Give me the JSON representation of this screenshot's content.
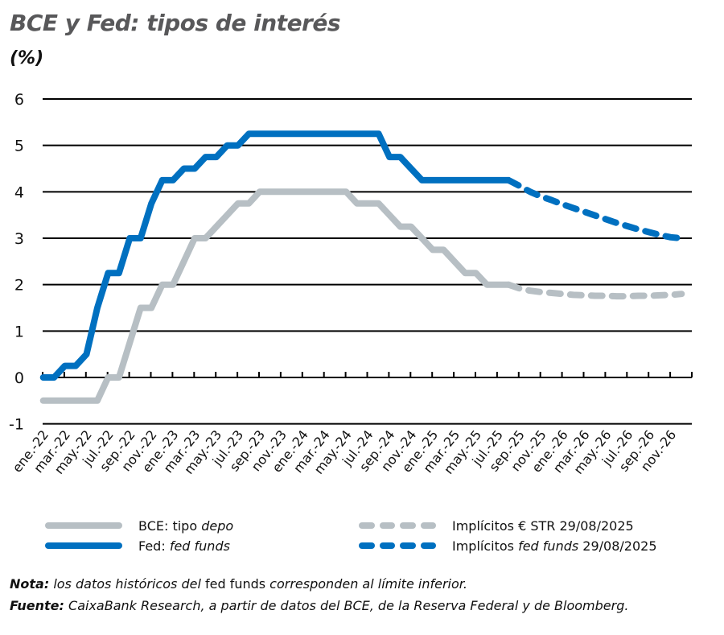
{
  "title": "BCE y Fed: tipos de interés",
  "unit_label": "(%)",
  "colors": {
    "fed": "#0070c0",
    "ecb": "#b7bfc4",
    "grid": "#000000",
    "title": "#58585a"
  },
  "legend": [
    {
      "label_plain": "BCE: tipo ",
      "label_italic": "depo",
      "label_tail": "",
      "style": "solid",
      "color": "#b7bfc4"
    },
    {
      "label_plain": "Fed: ",
      "label_italic": "fed funds",
      "label_tail": "",
      "style": "solid",
      "color": "#0070c0"
    },
    {
      "label_plain": "Implícitos € STR 29/08/2025",
      "label_italic": "",
      "label_tail": "",
      "style": "dashed",
      "color": "#b7bfc4"
    },
    {
      "label_plain": "Implícitos ",
      "label_italic": "fed funds",
      "label_tail": " 29/08/2025",
      "style": "dashed",
      "color": "#0070c0"
    }
  ],
  "notes": {
    "nota_label": "Nota:",
    "nota_text_1": " los datos históricos del ",
    "nota_upright": "fed funds",
    "nota_text_2": " corresponden al límite inferior.",
    "fuente_label": "Fuente:",
    "fuente_text": " CaixaBank Research, a partir de datos del BCE, de la Reserva Federal y de Bloomberg."
  },
  "chart_data": {
    "type": "line",
    "title": "BCE y Fed: tipos de interés",
    "ylabel": "(%)",
    "xlabel": "",
    "ylim": [
      -1,
      6
    ],
    "yticks": [
      6,
      5,
      4,
      3,
      2,
      1,
      0,
      -1
    ],
    "grid": true,
    "legend_position": "bottom",
    "x_tick_labels": [
      "ene.-22",
      "mar.-22",
      "may.-22",
      "jul.-22",
      "sep.-22",
      "nov.-22",
      "ene.-23",
      "mar.-23",
      "may.-23",
      "jul.-23",
      "sep.-23",
      "nov.-23",
      "ene.-24",
      "mar.-24",
      "may.-24",
      "jul.-24",
      "sep.-24",
      "nov.-24",
      "ene.-25",
      "mar.-25",
      "may.-25",
      "jul.-25",
      "sep.-25",
      "nov.-25",
      "ene.-26",
      "mar.-26",
      "may.-26",
      "jul.-26",
      "sep.-26",
      "nov.-26"
    ],
    "x_months": [
      "ene.-22",
      "feb.-22",
      "mar.-22",
      "abr.-22",
      "may.-22",
      "jun.-22",
      "jul.-22",
      "ago.-22",
      "sep.-22",
      "oct.-22",
      "nov.-22",
      "dic.-22",
      "ene.-23",
      "feb.-23",
      "mar.-23",
      "abr.-23",
      "may.-23",
      "jun.-23",
      "jul.-23",
      "ago.-23",
      "sep.-23",
      "oct.-23",
      "nov.-23",
      "dic.-23",
      "ene.-24",
      "feb.-24",
      "mar.-24",
      "abr.-24",
      "may.-24",
      "jun.-24",
      "jul.-24",
      "ago.-24",
      "sep.-24",
      "oct.-24",
      "nov.-24",
      "dic.-24",
      "ene.-25",
      "feb.-25",
      "mar.-25",
      "abr.-25",
      "may.-25",
      "jun.-25",
      "jul.-25",
      "ago.-25",
      "sep.-25",
      "oct.-25",
      "nov.-25",
      "dic.-25",
      "ene.-26",
      "feb.-26",
      "mar.-26",
      "abr.-26",
      "may.-26",
      "jun.-26",
      "jul.-26",
      "ago.-26",
      "sep.-26",
      "oct.-26",
      "nov.-26",
      "dic.-26"
    ],
    "series": [
      {
        "name": "BCE: tipo depo",
        "style": "solid",
        "color": "#b7bfc4",
        "start_month_index": 0,
        "values": [
          -0.5,
          -0.5,
          -0.5,
          -0.5,
          -0.5,
          -0.5,
          0.0,
          0.0,
          0.75,
          1.5,
          1.5,
          2.0,
          2.0,
          2.5,
          3.0,
          3.0,
          3.25,
          3.5,
          3.75,
          3.75,
          4.0,
          4.0,
          4.0,
          4.0,
          4.0,
          4.0,
          4.0,
          4.0,
          4.0,
          3.75,
          3.75,
          3.75,
          3.5,
          3.25,
          3.25,
          3.0,
          2.75,
          2.75,
          2.5,
          2.25,
          2.25,
          2.0,
          2.0,
          2.0
        ]
      },
      {
        "name": "Fed: fed funds",
        "style": "solid",
        "color": "#0070c0",
        "start_month_index": 0,
        "values": [
          0.0,
          0.0,
          0.25,
          0.25,
          0.5,
          1.5,
          2.25,
          2.25,
          3.0,
          3.0,
          3.75,
          4.25,
          4.25,
          4.5,
          4.5,
          4.75,
          4.75,
          5.0,
          5.0,
          5.25,
          5.25,
          5.25,
          5.25,
          5.25,
          5.25,
          5.25,
          5.25,
          5.25,
          5.25,
          5.25,
          5.25,
          5.25,
          4.75,
          4.75,
          4.5,
          4.25,
          4.25,
          4.25,
          4.25,
          4.25,
          4.25,
          4.25,
          4.25,
          4.25
        ]
      },
      {
        "name": "Implícitos € STR 29/08/2025",
        "style": "dashed",
        "color": "#b7bfc4",
        "start_month_index": 43,
        "values": [
          2.0,
          1.92,
          1.87,
          1.84,
          1.82,
          1.8,
          1.78,
          1.77,
          1.76,
          1.76,
          1.75,
          1.75,
          1.76,
          1.76,
          1.77,
          1.78,
          1.8
        ]
      },
      {
        "name": "Implícitos fed funds 29/08/2025",
        "style": "dashed",
        "color": "#0070c0",
        "start_month_index": 43,
        "values": [
          4.25,
          4.13,
          4.0,
          3.9,
          3.82,
          3.73,
          3.65,
          3.57,
          3.49,
          3.41,
          3.33,
          3.26,
          3.19,
          3.13,
          3.07,
          3.02,
          3.0
        ]
      }
    ]
  }
}
